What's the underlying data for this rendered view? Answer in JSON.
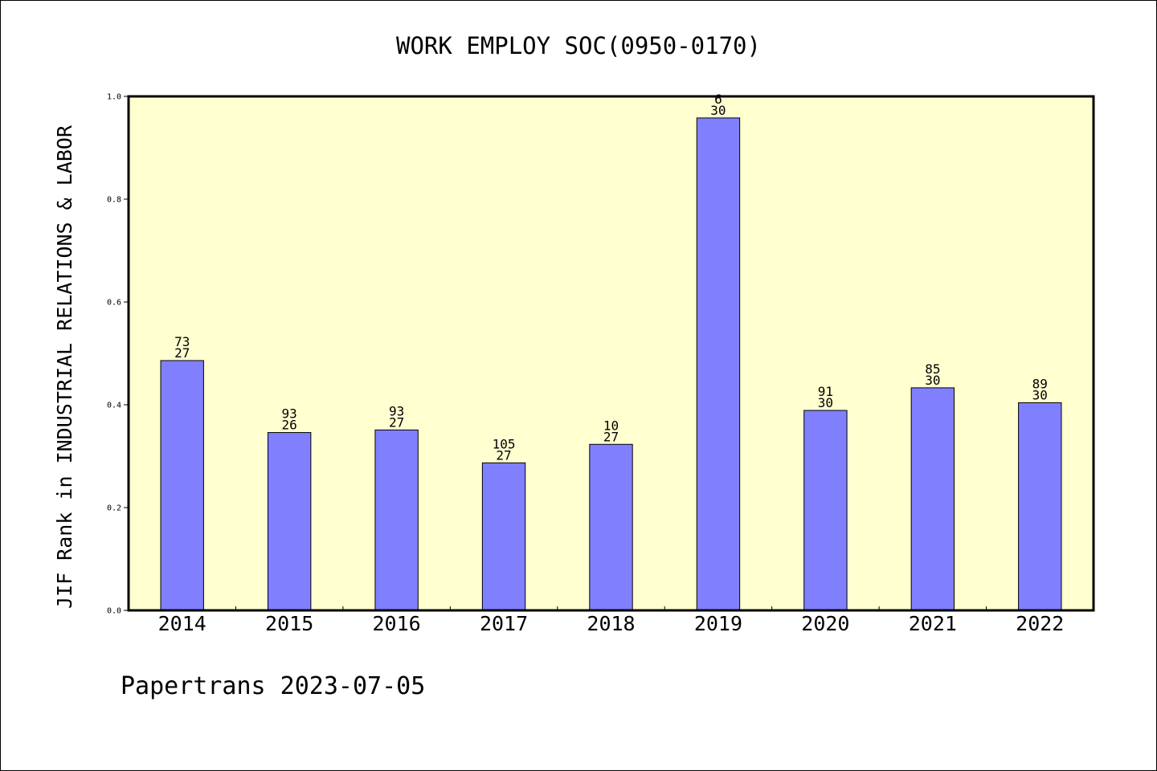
{
  "chart_data": {
    "type": "bar",
    "title": "WORK EMPLOY SOC(0950-0170)",
    "ylabel": "JIF Rank in INDUSTRIAL RELATIONS & LABOR",
    "xlabel": "",
    "categories": [
      "2014",
      "2015",
      "2016",
      "2017",
      "2018",
      "2019",
      "2020",
      "2021",
      "2022"
    ],
    "values": [
      0.486,
      0.346,
      0.351,
      0.287,
      0.323,
      0.958,
      0.389,
      0.433,
      0.404
    ],
    "label_top": [
      "73",
      "93",
      "93",
      "105",
      "10",
      "6",
      "91",
      "85",
      "89"
    ],
    "label_bottom": [
      "27",
      "26",
      "27",
      "27",
      "27",
      "30",
      "30",
      "30",
      "30"
    ],
    "ylim": [
      0,
      1.0
    ],
    "yticks": [
      0.0,
      0.2,
      0.4,
      0.6,
      0.8,
      1.0
    ],
    "ytick_labels": [
      "0.0",
      "0.2",
      "0.4",
      "0.6",
      "0.8",
      "1.0"
    ],
    "grid": false,
    "plot_background": "#FFFFD0",
    "bar_color": "#8080FF"
  },
  "footer": "Papertrans 2023-07-05"
}
